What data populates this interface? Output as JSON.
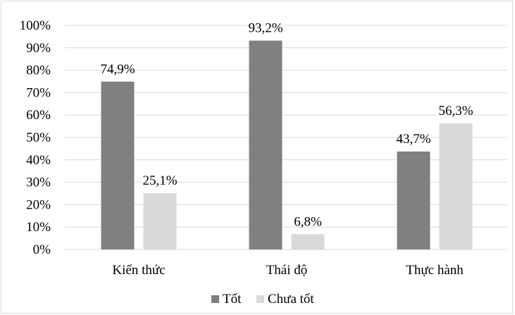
{
  "chart_data": {
    "type": "bar",
    "categories": [
      "Kiến thức",
      "Thái độ",
      "Thực hành"
    ],
    "series": [
      {
        "name": "Tốt",
        "values": [
          74.9,
          93.2,
          43.7
        ],
        "labels": [
          "74,9%",
          "93,2%",
          "43,7%"
        ],
        "color": "#808080"
      },
      {
        "name": "Chưa tốt",
        "values": [
          25.1,
          6.8,
          56.3
        ],
        "labels": [
          "25,1%",
          "6,8%",
          "56,3%"
        ],
        "color": "#d9d9d9"
      }
    ],
    "ylim": [
      0,
      100
    ],
    "y_ticks": [
      0,
      10,
      20,
      30,
      40,
      50,
      60,
      70,
      80,
      90,
      100
    ],
    "y_tick_labels": [
      "0%",
      "10%",
      "20%",
      "30%",
      "40%",
      "50%",
      "60%",
      "70%",
      "80%",
      "90%",
      "100%"
    ],
    "grid": true,
    "legend": "bottom",
    "gridline_color": "#d9d9d9"
  }
}
